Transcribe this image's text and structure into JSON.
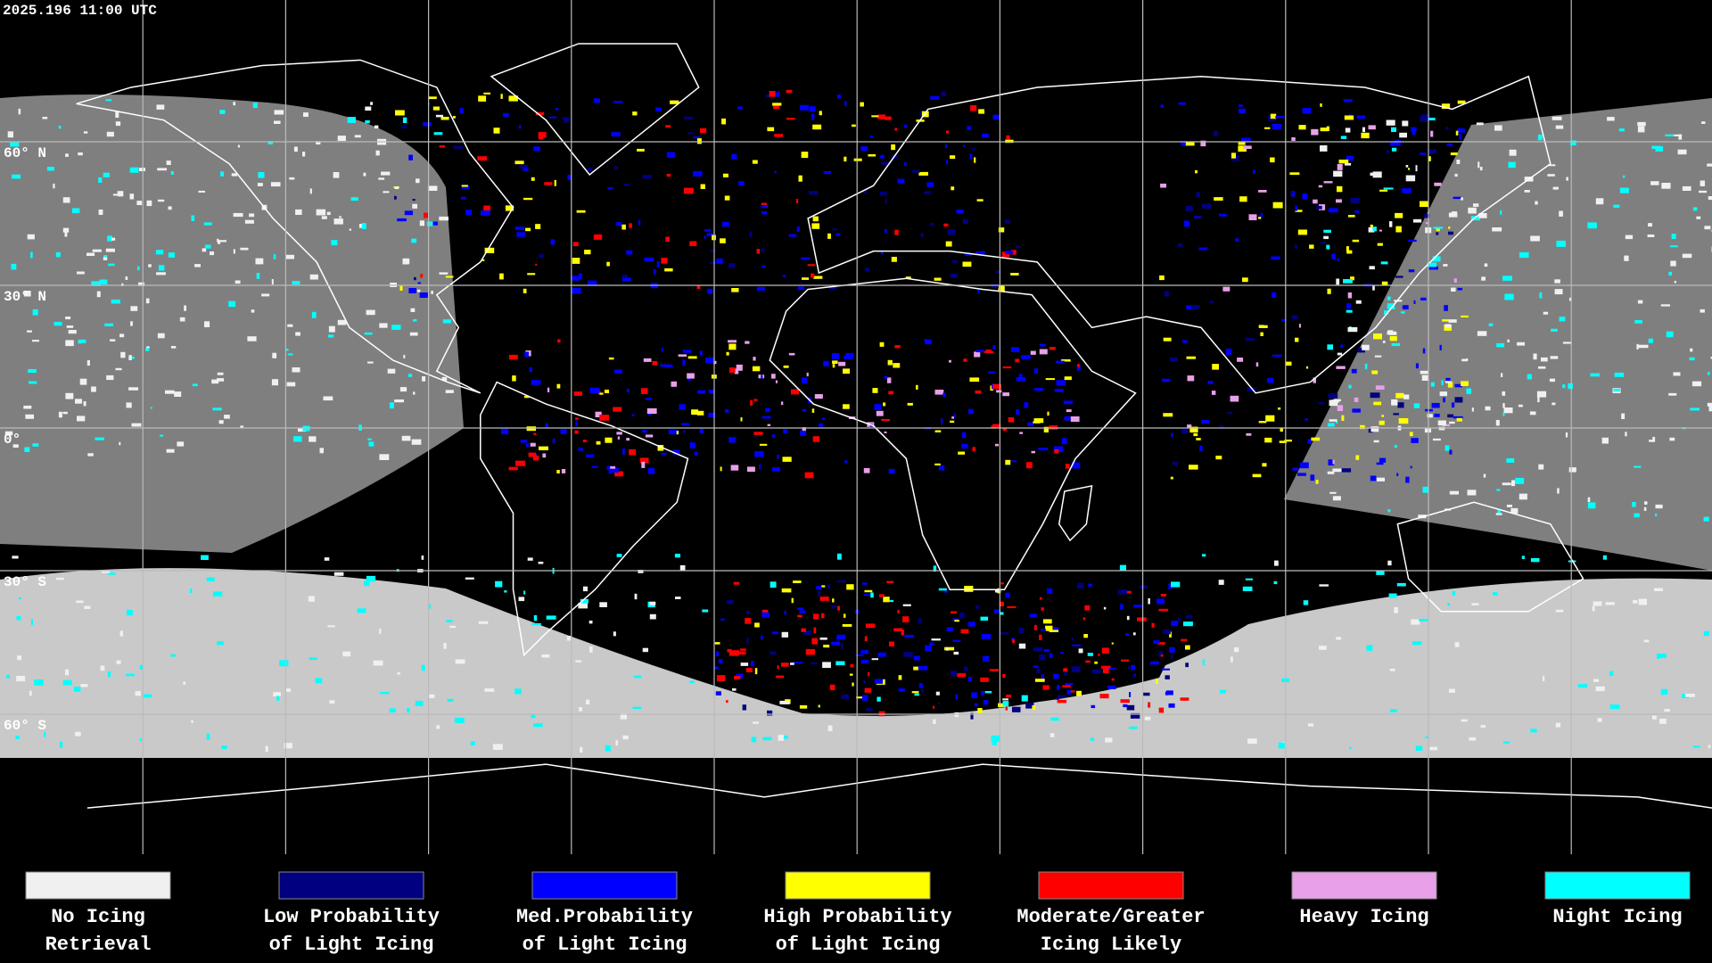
{
  "timestamp": "2025.196 11:00 UTC",
  "latitude_labels": [
    "60° N",
    "30° N",
    "0°",
    "30° S",
    "60° S"
  ],
  "legend": [
    {
      "lines": [
        "No Icing",
        "Retrieval"
      ],
      "color": "#f0f0f0"
    },
    {
      "lines": [
        "Low Probability",
        "of Light Icing"
      ],
      "color": "#000080"
    },
    {
      "lines": [
        "Med.Probability",
        "of Light Icing"
      ],
      "color": "#0000ff"
    },
    {
      "lines": [
        "High Probability",
        "of Light Icing"
      ],
      "color": "#ffff00"
    },
    {
      "lines": [
        "Moderate/Greater",
        "Icing Likely"
      ],
      "color": "#ff0000"
    },
    {
      "lines": [
        "Heavy Icing"
      ],
      "color": "#e8a0e8"
    },
    {
      "lines": [
        "Night Icing"
      ],
      "color": "#00ffff"
    }
  ]
}
